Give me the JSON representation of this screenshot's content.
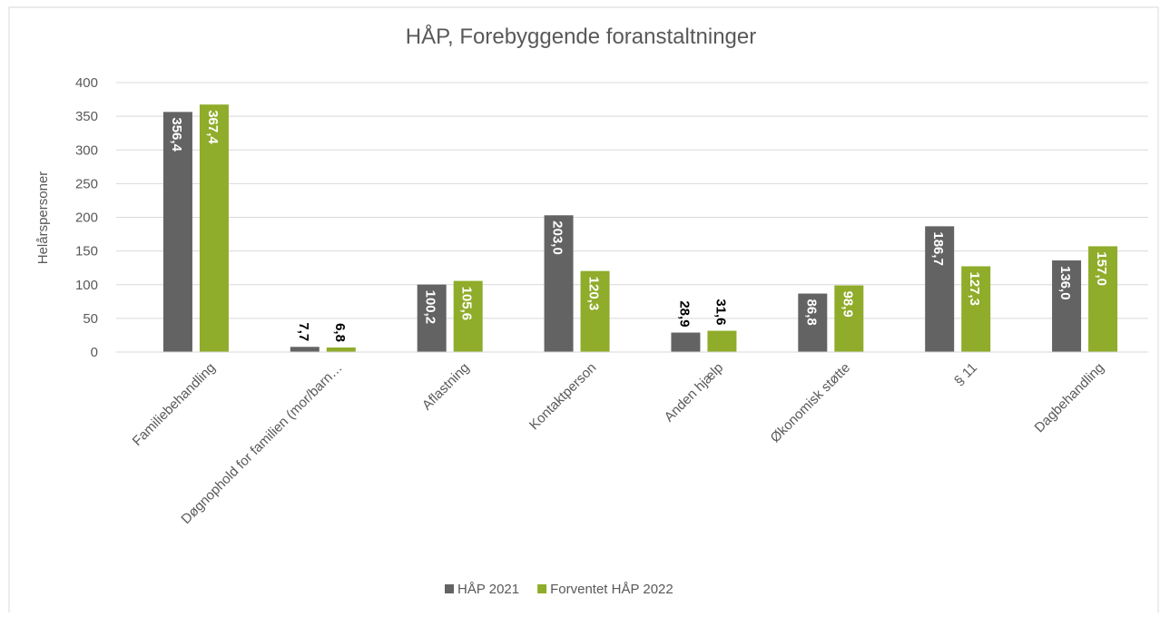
{
  "chart_data": {
    "type": "bar",
    "title": "HÅP, Forebyggende foranstaltninger",
    "y_label": "Helårspersoner",
    "categories": [
      "Familiebehandling",
      "Døgnophold for familien (mor/barn…",
      "Aflastning",
      "Kontaktperson",
      "Anden hjælp",
      "Økonomisk støtte",
      "§ 11",
      "Dagbehandling"
    ],
    "series": [
      {
        "name": "HÅP 2021",
        "color": "#636363",
        "values": [
          356.4,
          7.7,
          100.2,
          203.0,
          28.9,
          86.8,
          186.7,
          136.0
        ],
        "value_labels": [
          "356,4",
          "7,7",
          "100,2",
          "203,0",
          "28,9",
          "86,8",
          "186,7",
          "136,0"
        ]
      },
      {
        "name": "Forventet HÅP 2022",
        "color": "#8fac2a",
        "values": [
          367.4,
          6.8,
          105.6,
          120.3,
          31.6,
          98.9,
          127.3,
          157.0
        ],
        "value_labels": [
          "367,4",
          "6,8",
          "105,6",
          "120,3",
          "31,6",
          "98,9",
          "127,3",
          "157,0"
        ]
      }
    ],
    "ylim": [
      0,
      400
    ],
    "yticks": [
      0,
      50,
      100,
      150,
      200,
      250,
      300,
      350,
      400
    ],
    "grid": true,
    "legend": "bottom"
  }
}
